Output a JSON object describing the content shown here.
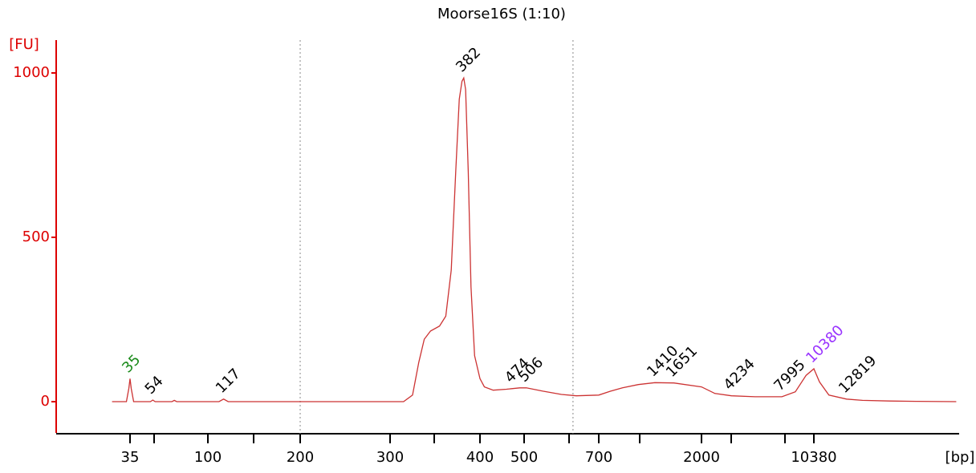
{
  "chart_data": {
    "type": "line",
    "title": "Moorse16S (1:10)",
    "y_label": "[FU]",
    "x_label": "[bp]",
    "color": "#cc3333",
    "axis_color": "#dd0000",
    "ylim": [
      -95,
      1100
    ],
    "yticks": [
      0,
      500,
      1000
    ],
    "xticks": [
      35,
      100,
      200,
      300,
      400,
      500,
      700,
      2000,
      10380
    ],
    "region_bounds": [
      200,
      631
    ],
    "x": [
      20,
      32,
      34,
      35,
      36,
      38,
      52,
      54,
      56,
      70,
      72,
      74,
      112,
      117,
      122,
      315,
      325,
      332,
      338,
      345,
      355,
      362,
      368,
      373,
      377,
      380,
      382,
      384,
      387,
      390,
      394,
      400,
      410,
      430,
      460,
      490,
      506,
      550,
      600,
      640,
      700,
      850,
      1000,
      1200,
      1410,
      1651,
      2000,
      3000,
      4234,
      6000,
      7995,
      9000,
      9800,
      10380,
      10800,
      11500,
      12819,
      14000,
      16000,
      18000,
      21000
    ],
    "values": [
      0,
      0,
      40,
      70,
      40,
      0,
      0,
      5,
      0,
      0,
      4,
      0,
      0,
      8,
      0,
      0,
      20,
      120,
      190,
      215,
      230,
      260,
      400,
      700,
      920,
      975,
      985,
      950,
      700,
      350,
      140,
      70,
      45,
      35,
      38,
      42,
      42,
      32,
      22,
      18,
      20,
      32,
      42,
      52,
      58,
      57,
      45,
      25,
      18,
      15,
      15,
      30,
      80,
      100,
      60,
      20,
      8,
      4,
      2,
      1,
      0
    ],
    "peak_labels": [
      35,
      54,
      117,
      382,
      474,
      506,
      1410,
      1651,
      4234,
      7995,
      10380,
      12819
    ],
    "peak_label_colors": [
      "#1a8a1a",
      "#000000",
      "#000000",
      "#000000",
      "#000000",
      "#000000",
      "#000000",
      "#000000",
      "#000000",
      "#000000",
      "#9933ff",
      "#000000"
    ]
  }
}
